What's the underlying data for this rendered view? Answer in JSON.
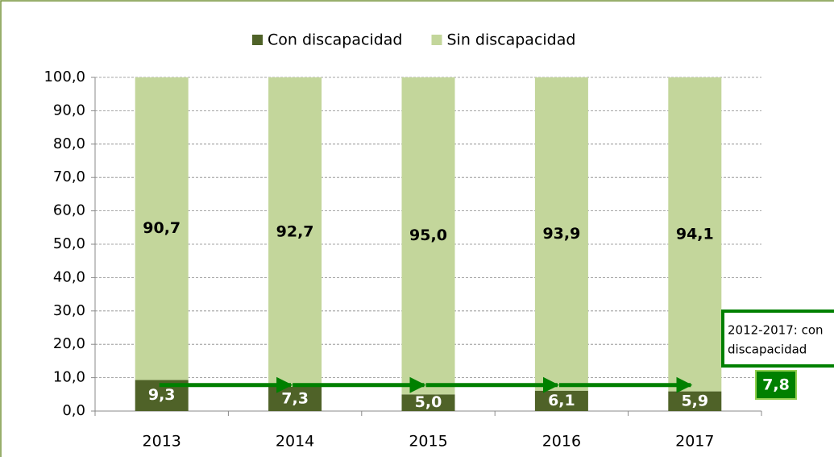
{
  "chart_data": {
    "type": "stacked_bar",
    "categories": [
      "2013",
      "2014",
      "2015",
      "2016",
      "2017"
    ],
    "series": [
      {
        "name": "Con discapacidad",
        "color": "#4f6228",
        "values": [
          9.3,
          7.3,
          5.0,
          6.1,
          5.9
        ],
        "value_labels": [
          "9,3",
          "7,3",
          "5,0",
          "6,1",
          "5,9"
        ]
      },
      {
        "name": "Sin discapacidad",
        "color": "#c3d69b",
        "values": [
          90.7,
          92.7,
          95.0,
          93.9,
          94.1
        ],
        "value_labels": [
          "90,7",
          "92,7",
          "95,0",
          "93,9",
          "94,1"
        ]
      }
    ],
    "ylim": [
      0,
      100
    ],
    "yticks": [
      {
        "value": 0,
        "label": "0,0"
      },
      {
        "value": 10,
        "label": "10,0"
      },
      {
        "value": 20,
        "label": "20,0"
      },
      {
        "value": 30,
        "label": "30,0"
      },
      {
        "value": 40,
        "label": "40,0"
      },
      {
        "value": 50,
        "label": "50,0"
      },
      {
        "value": 60,
        "label": "60,0"
      },
      {
        "value": 70,
        "label": "70,0"
      },
      {
        "value": 80,
        "label": "80,0"
      },
      {
        "value": 90,
        "label": "90,0"
      },
      {
        "value": 100,
        "label": "100,0"
      }
    ],
    "grid": true,
    "legend": "top",
    "annotation": {
      "text": [
        "2012-2017: con",
        "discapacidad"
      ],
      "value": 7.8,
      "label": "7,8",
      "color": "#008000"
    }
  }
}
